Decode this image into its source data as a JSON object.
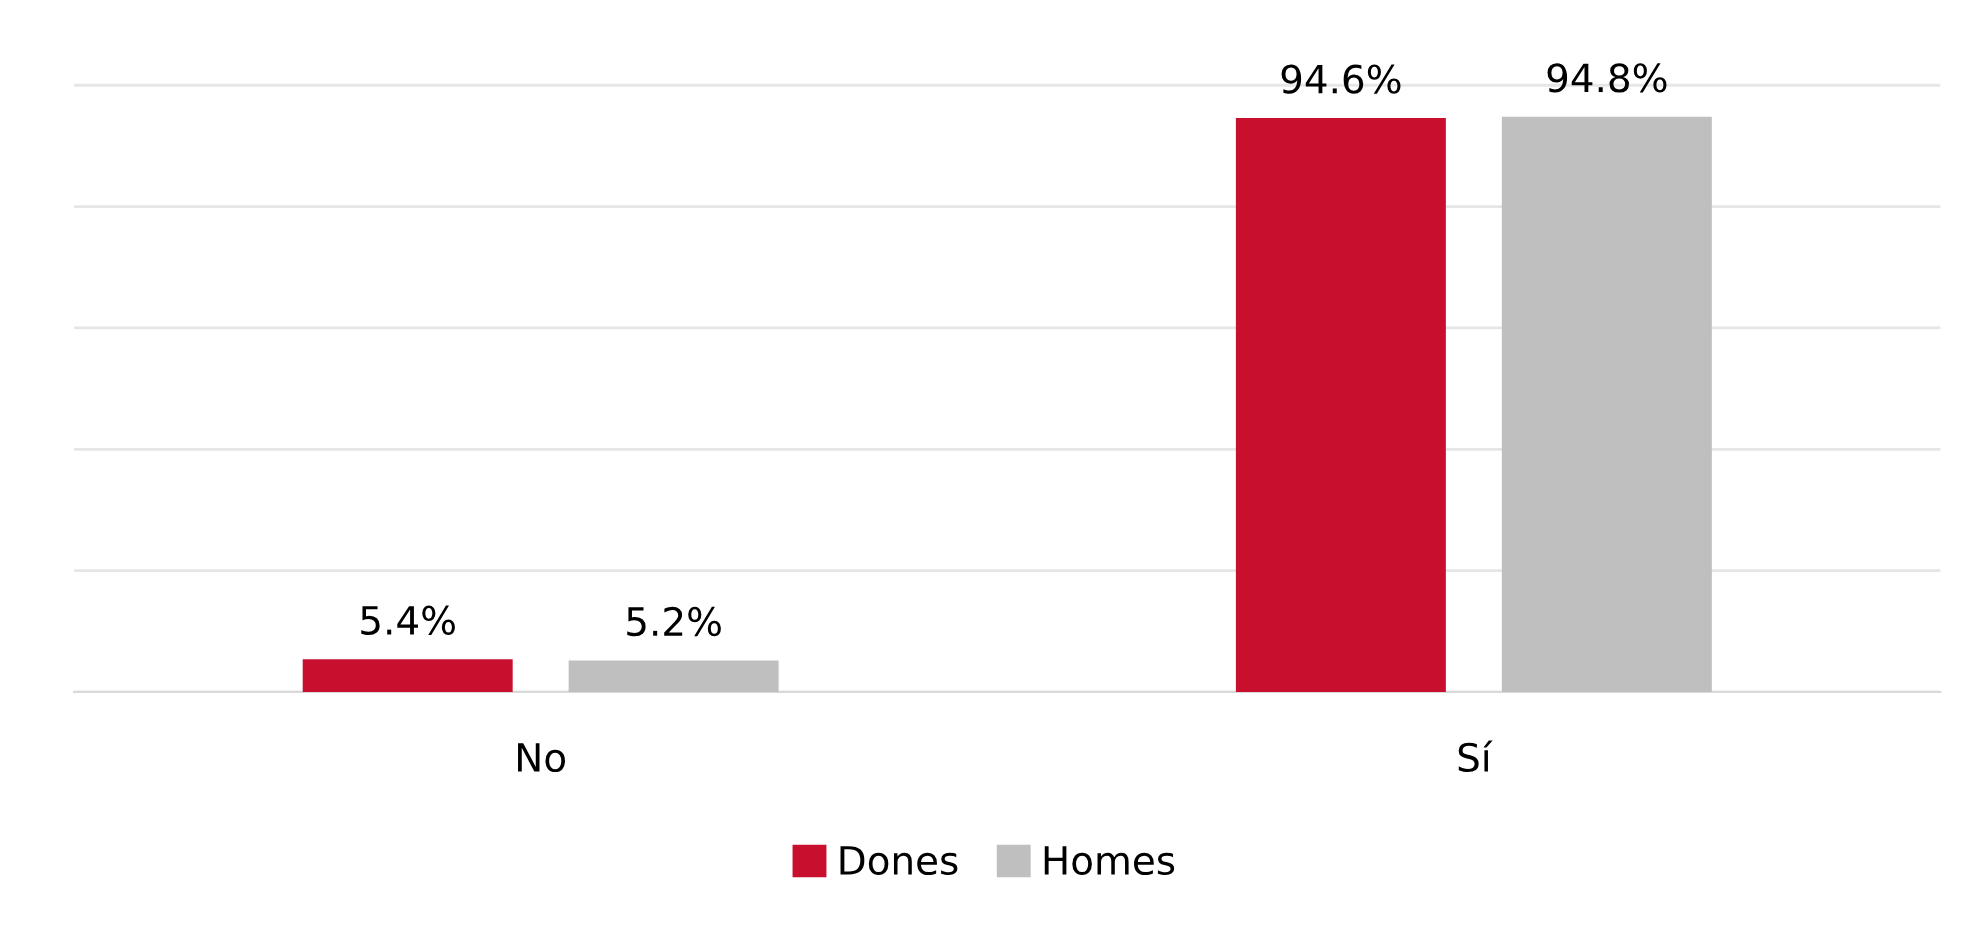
{
  "chart_data": {
    "type": "bar",
    "categories": [
      "No",
      "Sí"
    ],
    "series": [
      {
        "name": "Dones",
        "color": "#c8102e",
        "values": [
          5.4,
          94.6
        ],
        "value_labels": [
          "5.4%",
          "94.6%"
        ]
      },
      {
        "name": "Homes",
        "color": "#bfbfbf",
        "values": [
          5.2,
          94.8
        ],
        "value_labels": [
          "5.2%",
          "94.8%"
        ]
      }
    ],
    "tick_labels": "x",
    "grid": "y",
    "legend": "bottom"
  }
}
